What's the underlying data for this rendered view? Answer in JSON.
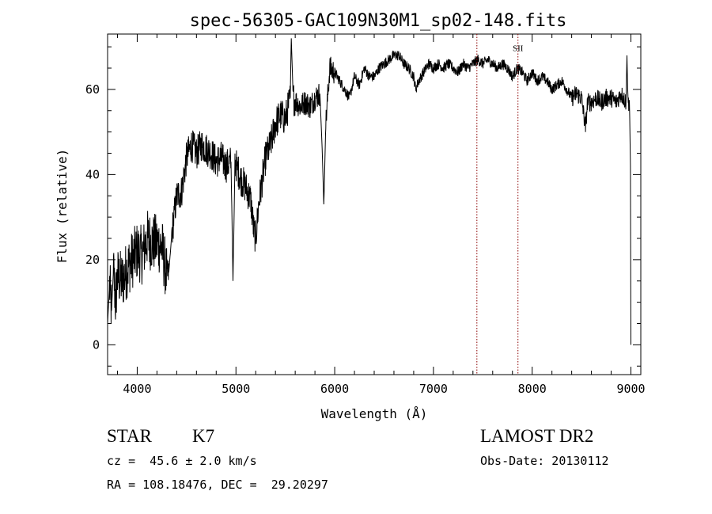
{
  "chart_data": {
    "type": "line",
    "title": "spec-56305-GAC109N30M1_sp02-148.fits",
    "xlabel": "Wavelength (Å)",
    "ylabel": "Flux (relative)",
    "xlim": [
      3700,
      9100
    ],
    "ylim": [
      -7,
      73
    ],
    "xticks": [
      4000,
      5000,
      6000,
      7000,
      8000,
      9000
    ],
    "yticks": [
      0,
      20,
      40,
      60
    ],
    "grid": false,
    "series": [
      {
        "values": [
          [
            3700,
            5
          ],
          [
            3720,
            14
          ],
          [
            3740,
            8
          ],
          [
            3760,
            18
          ],
          [
            3780,
            10
          ],
          [
            3800,
            16
          ],
          [
            3850,
            15
          ],
          [
            3900,
            18
          ],
          [
            3950,
            20
          ],
          [
            4000,
            22
          ],
          [
            4050,
            21
          ],
          [
            4100,
            25
          ],
          [
            4150,
            24
          ],
          [
            4200,
            24
          ],
          [
            4250,
            23
          ],
          [
            4300,
            16
          ],
          [
            4320,
            17
          ],
          [
            4350,
            26
          ],
          [
            4400,
            35
          ],
          [
            4450,
            36
          ],
          [
            4500,
            44
          ],
          [
            4550,
            47
          ],
          [
            4600,
            45
          ],
          [
            4650,
            47
          ],
          [
            4700,
            46
          ],
          [
            4750,
            45
          ],
          [
            4800,
            43
          ],
          [
            4850,
            44
          ],
          [
            4900,
            42
          ],
          [
            4950,
            43
          ],
          [
            4970,
            15
          ],
          [
            4990,
            43
          ],
          [
            5050,
            39
          ],
          [
            5100,
            37
          ],
          [
            5150,
            34
          ],
          [
            5180,
            27
          ],
          [
            5200,
            25
          ],
          [
            5230,
            33
          ],
          [
            5300,
            44
          ],
          [
            5350,
            47
          ],
          [
            5400,
            52
          ],
          [
            5450,
            54
          ],
          [
            5500,
            53
          ],
          [
            5550,
            58
          ],
          [
            5560,
            72
          ],
          [
            5580,
            58
          ],
          [
            5650,
            56
          ],
          [
            5700,
            57
          ],
          [
            5750,
            56
          ],
          [
            5800,
            58
          ],
          [
            5850,
            59
          ],
          [
            5870,
            48
          ],
          [
            5890,
            33
          ],
          [
            5910,
            52
          ],
          [
            5950,
            65
          ],
          [
            6000,
            64
          ],
          [
            6050,
            62
          ],
          [
            6100,
            60
          ],
          [
            6150,
            58
          ],
          [
            6200,
            63
          ],
          [
            6250,
            61
          ],
          [
            6300,
            65
          ],
          [
            6350,
            63
          ],
          [
            6400,
            63
          ],
          [
            6450,
            65
          ],
          [
            6500,
            66
          ],
          [
            6550,
            67
          ],
          [
            6600,
            68
          ],
          [
            6650,
            68
          ],
          [
            6700,
            66
          ],
          [
            6750,
            65
          ],
          [
            6800,
            63
          ],
          [
            6820,
            60
          ],
          [
            6850,
            62
          ],
          [
            6900,
            64
          ],
          [
            6950,
            66
          ],
          [
            7000,
            65
          ],
          [
            7050,
            66
          ],
          [
            7100,
            65
          ],
          [
            7150,
            66
          ],
          [
            7200,
            65
          ],
          [
            7250,
            64
          ],
          [
            7300,
            66
          ],
          [
            7350,
            65
          ],
          [
            7400,
            66
          ],
          [
            7450,
            67
          ],
          [
            7500,
            66
          ],
          [
            7550,
            67
          ],
          [
            7600,
            66
          ],
          [
            7650,
            65
          ],
          [
            7700,
            66
          ],
          [
            7750,
            65
          ],
          [
            7800,
            63
          ],
          [
            7850,
            65
          ],
          [
            7900,
            64
          ],
          [
            7950,
            62
          ],
          [
            8000,
            64
          ],
          [
            8050,
            62
          ],
          [
            8100,
            63
          ],
          [
            8150,
            62
          ],
          [
            8200,
            60
          ],
          [
            8250,
            61
          ],
          [
            8300,
            62
          ],
          [
            8350,
            60
          ],
          [
            8400,
            58
          ],
          [
            8450,
            59
          ],
          [
            8500,
            58
          ],
          [
            8540,
            51
          ],
          [
            8560,
            57
          ],
          [
            8600,
            57
          ],
          [
            8650,
            58
          ],
          [
            8700,
            57
          ],
          [
            8750,
            58
          ],
          [
            8800,
            58
          ],
          [
            8850,
            57
          ],
          [
            8900,
            59
          ],
          [
            8950,
            57
          ],
          [
            8960,
            68
          ],
          [
            8970,
            57
          ],
          [
            8985,
            57
          ],
          [
            8995,
            42
          ],
          [
            9000,
            0
          ]
        ]
      }
    ],
    "annotations": [
      {
        "label": "SII",
        "x": 7856,
        "y": 69
      }
    ],
    "reference_lines_x": [
      7440,
      7856
    ],
    "line_color": "#000000",
    "reference_line_color": "#8b0000"
  },
  "info": {
    "object_class": "STAR",
    "subclass": "K7",
    "survey": "LAMOST DR2",
    "redshift": "cz =  45.6 ± 2.0 km/s",
    "obs_date": "Obs-Date: 20130112",
    "coords": "RA = 108.18476, DEC =  29.20297"
  }
}
